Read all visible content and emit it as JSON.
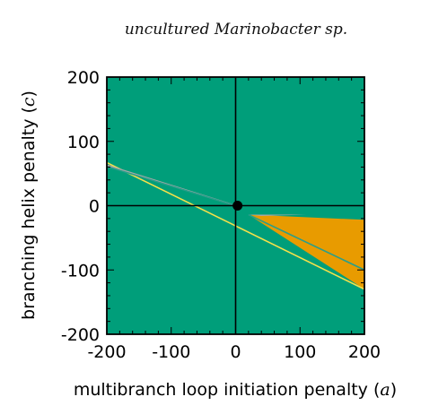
{
  "chart_data": {
    "type": "area",
    "title": "uncultured Marinobacter sp.",
    "xlabel": {
      "text": "multibranch loop initiation penalty (",
      "var": "a",
      "close": ")"
    },
    "ylabel": {
      "text": "branching helix penalty (",
      "var": "c",
      "close": ")"
    },
    "xlim": [
      -200,
      200
    ],
    "ylim": [
      -200,
      200
    ],
    "xticks": [
      -200,
      -100,
      0,
      100,
      200
    ],
    "yticks": [
      -200,
      -100,
      0,
      100,
      200
    ],
    "xtick_labels": [
      "-200",
      "-100",
      "0",
      "100",
      "200"
    ],
    "ytick_labels": [
      "-200",
      "-100",
      "0",
      "100",
      "200"
    ],
    "grid": false,
    "background_color": "#009e7a",
    "regions": [
      {
        "color": "#e89b00",
        "polygon": [
          [
            20,
            -14
          ],
          [
            200,
            -22
          ],
          [
            200,
            -130
          ],
          [
            20,
            -14
          ]
        ]
      },
      {
        "color": "#a8a8a8",
        "polygon": [
          [
            20,
            -14
          ],
          [
            110,
            -14
          ],
          [
            40,
            -16
          ],
          [
            20,
            -14
          ]
        ]
      }
    ],
    "boundary_lines": [
      {
        "color": "#f5e14a",
        "points": [
          [
            -200,
            67
          ],
          [
            200,
            -130
          ]
        ]
      },
      {
        "color": "#a8a8a8",
        "points": [
          [
            -200,
            63
          ],
          [
            0,
            0
          ]
        ]
      },
      {
        "color": "#2a9e8a",
        "points": [
          [
            -200,
            61
          ],
          [
            0,
            0
          ]
        ]
      },
      {
        "color": "#2a9e8a",
        "points": [
          [
            20,
            -14
          ],
          [
            200,
            -100
          ]
        ]
      }
    ],
    "reference_lines": [
      {
        "orientation": "vertical",
        "value": 0,
        "color": "#000000"
      },
      {
        "orientation": "horizontal",
        "value": 0,
        "color": "#000000"
      }
    ],
    "marker": {
      "x": 3,
      "y": 0,
      "color": "#000000"
    }
  }
}
